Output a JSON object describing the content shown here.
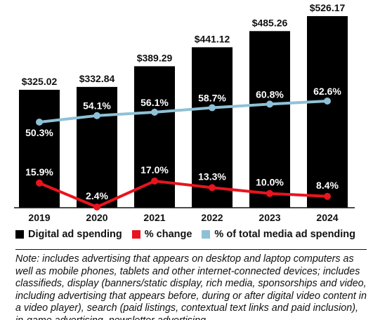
{
  "chart_data": {
    "type": "bar",
    "categories": [
      "2019",
      "2020",
      "2021",
      "2022",
      "2023",
      "2024"
    ],
    "series": [
      {
        "name": "Digital ad spending",
        "type": "bar",
        "values": [
          325.02,
          332.84,
          389.29,
          441.12,
          485.26,
          526.17
        ],
        "labels": [
          "$325.02",
          "$332.84",
          "$389.29",
          "$441.12",
          "$485.26",
          "$526.17"
        ]
      },
      {
        "name": "% change",
        "type": "line",
        "values": [
          15.9,
          2.4,
          17.0,
          13.3,
          10.0,
          8.4
        ],
        "labels": [
          "15.9%",
          "2.4%",
          "17.0%",
          "13.3%",
          "10.0%",
          "8.4%"
        ]
      },
      {
        "name": "% of total media ad spending",
        "type": "line",
        "values": [
          50.3,
          54.1,
          56.1,
          58.7,
          60.8,
          62.6
        ],
        "labels": [
          "50.3%",
          "54.1%",
          "56.1%",
          "58.7%",
          "60.8%",
          "62.6%"
        ]
      }
    ],
    "colors": {
      "bar": "#000000",
      "change": "#e8141e",
      "share": "#8ec1d6"
    },
    "legend_position": "bottom",
    "grid": false
  },
  "note": "Note: includes advertising that appears on desktop and laptop computers as well as mobile phones, tablets and other internet-connected devices; includes classifieds, display (banners/static display, rich media, sponsorships and video, including advertising that appears before, during or after digital video content in a video player), search (paid listings, contextual text links and paid inclusion), in-game advertising, newsletter advertising"
}
